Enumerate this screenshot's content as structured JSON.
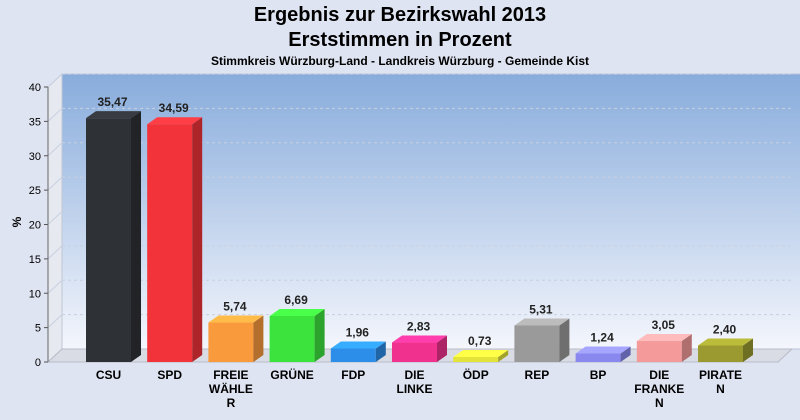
{
  "chart_data": {
    "type": "bar",
    "title": "Ergebnis zur Bezirkswahl 2013",
    "title_line2": "Erststimmen in Prozent",
    "subtitle": "Stimmkreis Würzburg-Land - Landkreis Würzburg - Gemeinde Kist",
    "ylabel": "%",
    "ylim": [
      0,
      40
    ],
    "yticks": [
      0,
      5,
      10,
      15,
      20,
      25,
      30,
      35,
      40
    ],
    "grid": true,
    "categories": [
      [
        "CSU"
      ],
      [
        "SPD"
      ],
      [
        "FREIE",
        "WÄHLE",
        "R"
      ],
      [
        "GRÜNE"
      ],
      [
        "FDP"
      ],
      [
        "DIE",
        "LINKE"
      ],
      [
        "ÖDP"
      ],
      [
        "REP"
      ],
      [
        "BP"
      ],
      [
        "DIE",
        "FRANKE",
        "N"
      ],
      [
        "PIRATE",
        "N"
      ]
    ],
    "values": [
      35.47,
      34.59,
      5.74,
      6.69,
      1.96,
      2.83,
      0.73,
      5.31,
      1.24,
      3.05,
      2.4
    ],
    "value_labels": [
      "35,47",
      "34,59",
      "5,74",
      "6,69",
      "1,96",
      "2,83",
      "0,73",
      "5,31",
      "1,24",
      "3,05",
      "2,40"
    ],
    "colors": [
      "#2e3136",
      "#f23339",
      "#f99a3c",
      "#3de33d",
      "#2c8ee8",
      "#f0328e",
      "#e3e33a",
      "#9a9a9a",
      "#8888ee",
      "#f59a9a",
      "#9a9a30"
    ]
  }
}
